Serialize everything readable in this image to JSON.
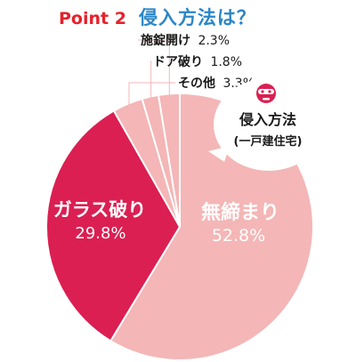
{
  "title": {
    "point": "Point 2",
    "main": "侵入方法は？"
  },
  "chart_data": {
    "type": "pie",
    "title": "侵入方法（一戸建住宅）",
    "slices": [
      {
        "label": "無締まり",
        "value": 52.8,
        "value_text": "52.8%",
        "color": "#f4b6b6"
      },
      {
        "label": "ガラス破り",
        "value": 29.8,
        "value_text": "29.8%",
        "color": "#db1f52"
      },
      {
        "label": "その他",
        "value": 3.3,
        "value_text": "3.3%",
        "color": "#f4b6b6"
      },
      {
        "label": "ドア破り",
        "value": 1.8,
        "value_text": "1.8%",
        "color": "#f4b6b6"
      },
      {
        "label": "施錠開け",
        "value": 2.3,
        "value_text": "2.3%",
        "color": "#f4b6b6"
      }
    ],
    "legend": "none"
  },
  "bubble": {
    "line1": "侵入方法",
    "line2": "(一戸建住宅)",
    "icon": "burglar-mask-icon"
  },
  "colors": {
    "light": "#f4b6b6",
    "accent": "#db1f52",
    "divider": "#ffffff",
    "title_red": "#e8202a",
    "title_blue": "#2a86c8"
  }
}
